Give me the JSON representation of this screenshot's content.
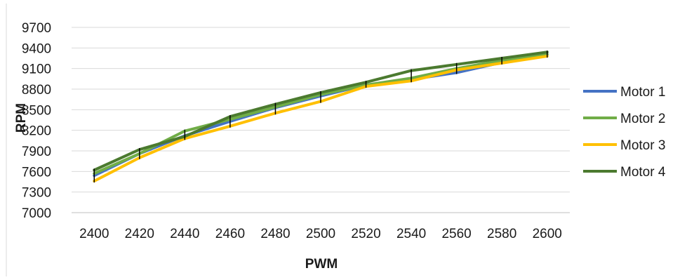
{
  "chart_data": {
    "type": "line",
    "xlabel": "PWM",
    "ylabel": "RPM",
    "x": [
      2400,
      2420,
      2440,
      2460,
      2480,
      2500,
      2520,
      2540,
      2560,
      2580,
      2600
    ],
    "ylim": [
      7000,
      9700
    ],
    "yticks": [
      7000,
      7300,
      7600,
      7900,
      8200,
      8500,
      8800,
      9100,
      9400,
      9700
    ],
    "grid": true,
    "legend_position": "right",
    "series": [
      {
        "name": "Motor 1",
        "color": "#4472C4",
        "values": [
          7540,
          7860,
          8120,
          8330,
          8530,
          8700,
          8860,
          8940,
          9040,
          9190,
          9300
        ]
      },
      {
        "name": "Motor 2",
        "color": "#70AD47",
        "values": [
          7570,
          7860,
          8190,
          8360,
          8540,
          8720,
          8860,
          8960,
          9100,
          9220,
          9310
        ]
      },
      {
        "name": "Motor 3",
        "color": "#FFC000",
        "values": [
          7460,
          7800,
          8080,
          8260,
          8450,
          8620,
          8840,
          8920,
          9080,
          9180,
          9280
        ]
      },
      {
        "name": "Motor 4",
        "color": "#4B7A2F",
        "values": [
          7620,
          7920,
          8110,
          8400,
          8580,
          8750,
          8900,
          9070,
          9160,
          9250,
          9340
        ]
      }
    ]
  }
}
